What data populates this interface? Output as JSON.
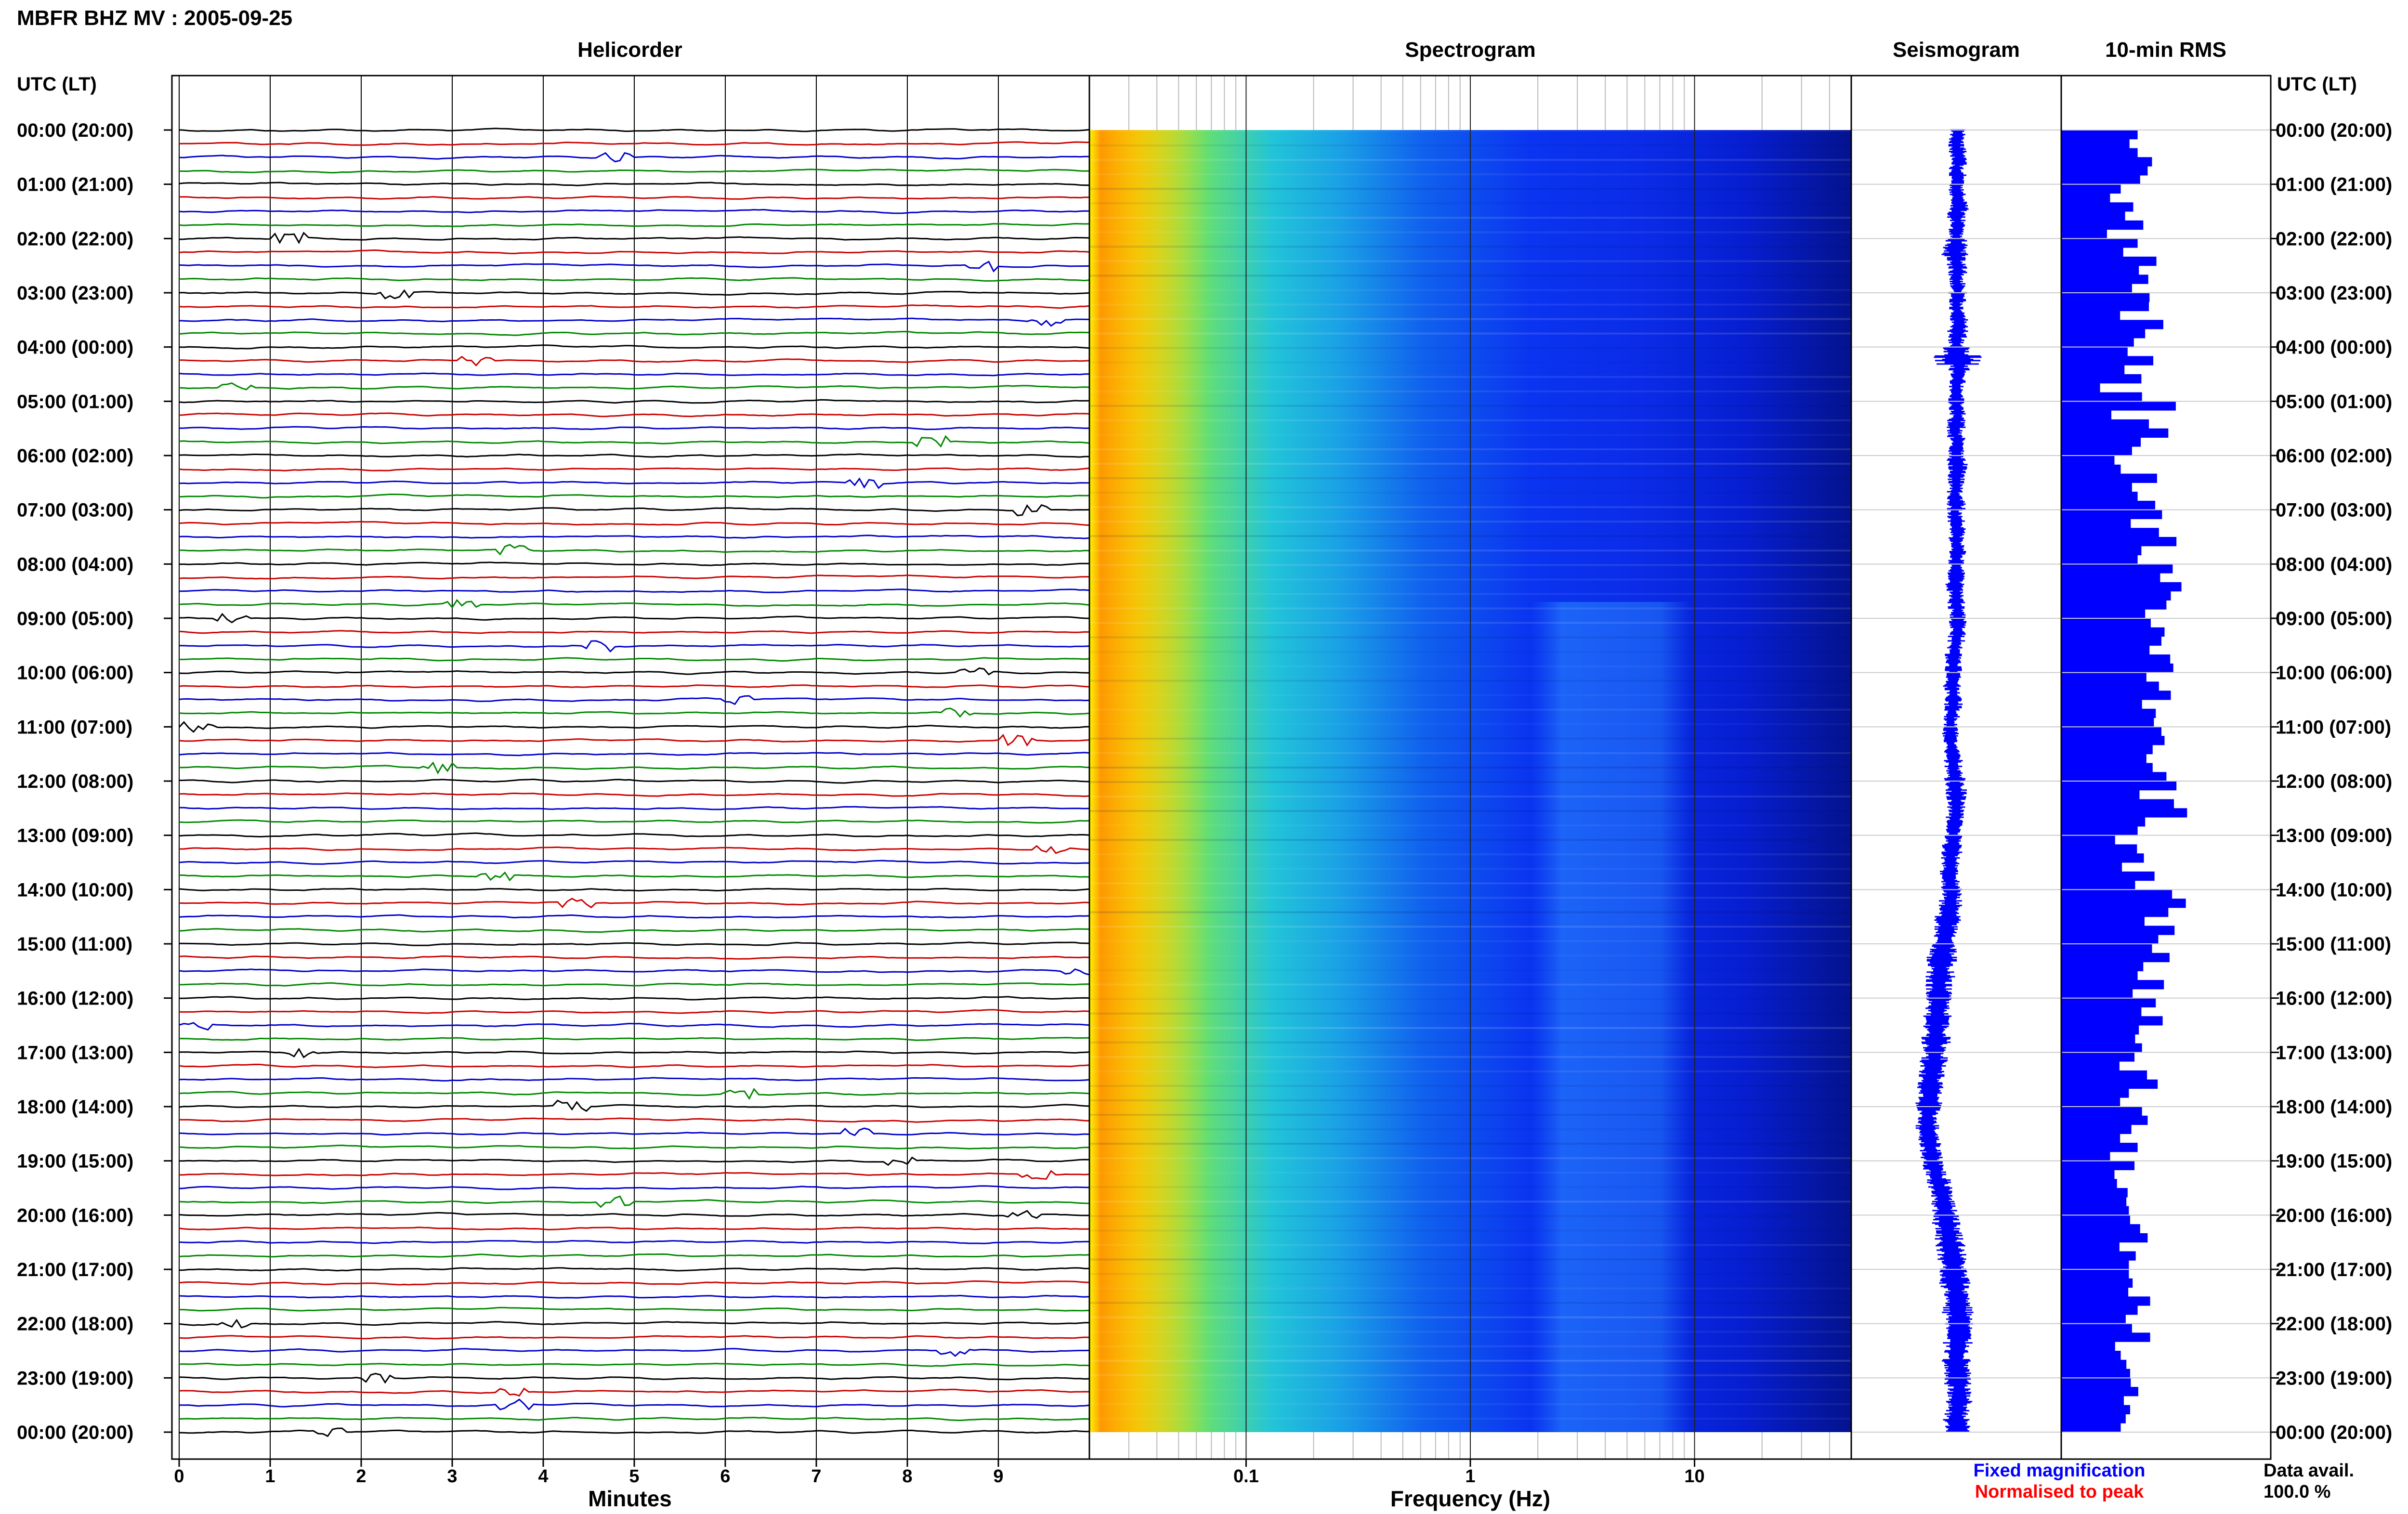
{
  "title": "MBFR BHZ MV : 2005-09-25",
  "panels": {
    "helicorder": "Helicorder",
    "spectrogram": "Spectrogram",
    "seismogram": "Seismogram",
    "rms": "10-min RMS"
  },
  "time_axis_label": "UTC (LT)",
  "time_ticks": [
    "00:00 (20:00)",
    "01:00 (21:00)",
    "02:00 (22:00)",
    "03:00 (23:00)",
    "04:00 (00:00)",
    "05:00 (01:00)",
    "06:00 (02:00)",
    "07:00 (03:00)",
    "08:00 (04:00)",
    "09:00 (05:00)",
    "10:00 (06:00)",
    "11:00 (07:00)",
    "12:00 (08:00)",
    "13:00 (09:00)",
    "14:00 (10:00)",
    "15:00 (11:00)",
    "16:00 (12:00)",
    "17:00 (13:00)",
    "18:00 (14:00)",
    "19:00 (15:00)",
    "20:00 (16:00)",
    "21:00 (17:00)",
    "22:00 (18:00)",
    "23:00 (19:00)",
    "00:00 (20:00)"
  ],
  "helicorder_axis": {
    "label": "Minutes",
    "ticks": [
      "0",
      "1",
      "2",
      "3",
      "4",
      "5",
      "6",
      "7",
      "8",
      "9"
    ],
    "trace_colors": [
      "#000000",
      "#cc0000",
      "#0000cc",
      "#008800"
    ]
  },
  "spectrogram_axis": {
    "label": "Frequency (Hz)",
    "ticks": [
      "0.1",
      "1",
      "10"
    ],
    "scale": "log",
    "xlim_hz": [
      0.02,
      50
    ]
  },
  "legend": {
    "fixed": "Fixed magnification",
    "normalised": "Normalised to peak",
    "fixed_color": "#0000ff",
    "normalised_color": "#ff0000"
  },
  "data_avail": {
    "label": "Data avail.",
    "value": "100.0 %"
  },
  "colors": {
    "rms_bar": "#0000ff",
    "seismogram": "#0000ff",
    "grid": "#cccccc"
  },
  "chart_data": {
    "type": "bar",
    "ylabel": "UTC (LT)",
    "rms_hour_series": [
      [
        1.22,
        1.09,
        1.22,
        1.45,
        1.38,
        1.26
      ],
      [
        0.95,
        0.78,
        1.15,
        1.02,
        1.31,
        0.73
      ],
      [
        1.22,
        0.99,
        1.52,
        1.24,
        1.39,
        1.13
      ],
      [
        1.41,
        1.4,
        0.94,
        1.63,
        1.34,
        1.16
      ],
      [
        1.06,
        1.47,
        1.01,
        1.28,
        0.62,
        1.29
      ],
      [
        1.83,
        0.8,
        1.4,
        1.71,
        1.27,
        1.13
      ],
      [
        0.85,
        0.95,
        1.53,
        1.13,
        1.22,
        1.5
      ],
      [
        1.61,
        1.11,
        1.56,
        1.84,
        1.28,
        1.22
      ],
      [
        1.78,
        1.58,
        1.92,
        1.75,
        1.68,
        1.34
      ],
      [
        1.43,
        1.65,
        1.6,
        1.41,
        1.74,
        1.79
      ],
      [
        1.36,
        1.56,
        1.75,
        1.29,
        1.51,
        1.48
      ],
      [
        1.6,
        1.65,
        1.46,
        1.36,
        1.46,
        1.68
      ],
      [
        1.84,
        1.25,
        1.8,
        2.01,
        1.34,
        1.22
      ],
      [
        0.86,
        1.21,
        1.32,
        0.97,
        1.49,
        1.18
      ],
      [
        1.77,
        1.99,
        1.71,
        1.33,
        1.81,
        1.55
      ],
      [
        1.45,
        1.73,
        1.31,
        1.22,
        1.64,
        1.14
      ],
      [
        1.51,
        1.28,
        1.62,
        1.24,
        1.18,
        1.29
      ],
      [
        1.17,
        0.93,
        1.37,
        1.54,
        1.08,
        0.94
      ],
      [
        1.29,
        1.38,
        1.12,
        0.94,
        1.22,
        0.78
      ],
      [
        1.17,
        0.85,
        0.89,
        1.06,
        1.04,
        1.08
      ],
      [
        1.1,
        1.26,
        1.38,
        0.93,
        1.19,
        1.08
      ],
      [
        1.08,
        1.14,
        1.07,
        1.42,
        1.22,
        1.03
      ],
      [
        1.13,
        1.42,
        0.86,
        0.95,
        1.04,
        1.1
      ],
      [
        1.11,
        1.23,
        1.0,
        1.1,
        1.03,
        0.95
      ]
    ],
    "seismogram_offset_hour_series": [
      [
        0.05,
        0.0,
        0.05,
        0.1,
        0.0,
        0.05
      ],
      [
        0.0,
        0.05,
        0.1,
        0.0,
        0.05,
        0.0
      ],
      [
        0.0,
        -0.05,
        0.0,
        0.05,
        0.0,
        0.05
      ],
      [
        0.05,
        0.0,
        0.05,
        0.1,
        0.05,
        0.0
      ],
      [
        0.0,
        0.05,
        0.1,
        0.05,
        0.0,
        0.0
      ],
      [
        0.0,
        0.05,
        0.0,
        -0.05,
        0.05,
        0.0
      ],
      [
        0.0,
        0.05,
        0.0,
        0.0,
        -0.05,
        0.0
      ],
      [
        -0.05,
        0.0,
        0.05,
        0.0,
        0.05,
        0.0
      ],
      [
        0.0,
        0.0,
        -0.05,
        0.0,
        0.0,
        0.05
      ],
      [
        0.05,
        0.05,
        0.0,
        -0.05,
        -0.1,
        -0.1
      ],
      [
        -0.1,
        -0.15,
        -0.1,
        -0.1,
        -0.15,
        -0.2
      ],
      [
        -0.2,
        -0.2,
        -0.15,
        -0.1,
        -0.1,
        -0.05
      ],
      [
        -0.05,
        0.0,
        0.0,
        0.0,
        -0.05,
        -0.1
      ],
      [
        -0.1,
        -0.15,
        -0.2,
        -0.2,
        -0.25,
        -0.2
      ],
      [
        -0.15,
        -0.2,
        -0.25,
        -0.3,
        -0.35,
        -0.4
      ],
      [
        -0.45,
        -0.5,
        -0.55,
        -0.55,
        -0.6,
        -0.6
      ],
      [
        -0.6,
        -0.65,
        -0.65,
        -0.7,
        -0.7,
        -0.75
      ],
      [
        -0.75,
        -0.8,
        -0.85,
        -0.9,
        -0.9,
        -0.95
      ],
      [
        -0.95,
        -1.0,
        -1.0,
        -0.95,
        -0.9,
        -0.85
      ],
      [
        -0.8,
        -0.7,
        -0.6,
        -0.5,
        -0.45,
        -0.4
      ],
      [
        -0.35,
        -0.3,
        -0.25,
        -0.2,
        -0.15,
        -0.1
      ],
      [
        -0.1,
        -0.05,
        0.0,
        0.05,
        0.05,
        0.1
      ],
      [
        0.1,
        0.1,
        0.05,
        0.0,
        0.0,
        0.05
      ],
      [
        0.05,
        0.1,
        0.1,
        0.05,
        0.0,
        0.05
      ]
    ],
    "seismogram_amplitude_hour_series": [
      [
        0.3,
        0.3,
        0.35,
        0.3,
        0.3,
        0.35
      ],
      [
        0.35,
        0.3,
        0.4,
        0.35,
        0.3,
        0.3
      ],
      [
        0.45,
        0.5,
        0.35,
        0.35,
        0.3,
        0.3
      ],
      [
        0.35,
        0.3,
        0.3,
        0.35,
        0.4,
        0.3
      ],
      [
        0.5,
        0.9,
        0.4,
        0.35,
        0.3,
        0.3
      ],
      [
        0.3,
        0.3,
        0.35,
        0.3,
        0.3,
        0.3
      ],
      [
        0.35,
        0.4,
        0.35,
        0.3,
        0.3,
        0.35
      ],
      [
        0.3,
        0.35,
        0.3,
        0.3,
        0.35,
        0.3
      ],
      [
        0.3,
        0.35,
        0.35,
        0.3,
        0.35,
        0.3
      ],
      [
        0.35,
        0.3,
        0.35,
        0.3,
        0.35,
        0.35
      ],
      [
        0.3,
        0.35,
        0.3,
        0.35,
        0.3,
        0.3
      ],
      [
        0.35,
        0.3,
        0.3,
        0.35,
        0.35,
        0.4
      ],
      [
        0.35,
        0.4,
        0.35,
        0.3,
        0.35,
        0.3
      ],
      [
        0.35,
        0.4,
        0.35,
        0.35,
        0.4,
        0.35
      ],
      [
        0.4,
        0.45,
        0.4,
        0.5,
        0.45,
        0.45
      ],
      [
        0.55,
        0.6,
        0.5,
        0.55,
        0.5,
        0.5
      ],
      [
        0.6,
        0.5,
        0.55,
        0.5,
        0.55,
        0.5
      ],
      [
        0.5,
        0.55,
        0.5,
        0.5,
        0.45,
        0.5
      ],
      [
        0.45,
        0.4,
        0.45,
        0.4,
        0.4,
        0.45
      ],
      [
        0.45,
        0.4,
        0.45,
        0.5,
        0.45,
        0.5
      ],
      [
        0.55,
        0.5,
        0.55,
        0.6,
        0.55,
        0.5
      ],
      [
        0.55,
        0.6,
        0.5,
        0.55,
        0.6,
        0.55
      ],
      [
        0.55,
        0.5,
        0.55,
        0.5,
        0.55,
        0.5
      ],
      [
        0.5,
        0.45,
        0.5,
        0.45,
        0.5,
        0.5
      ]
    ]
  }
}
